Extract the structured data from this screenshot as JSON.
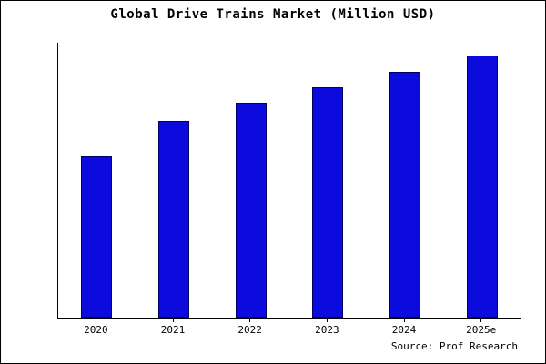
{
  "chart_data": {
    "type": "bar",
    "title": "Global Drive Trains Market (Million USD)",
    "categories": [
      "2020",
      "2021",
      "2022",
      "2023",
      "2024",
      "2025e"
    ],
    "values": [
      62,
      75,
      82,
      88,
      94,
      100
    ],
    "xlabel": "",
    "ylabel": "",
    "ylim": [
      0,
      105
    ],
    "grid": false,
    "legend": "none",
    "bar_color": "#0b0bdd",
    "bar_border_color": "#000066",
    "source": "Source: Prof Research"
  }
}
